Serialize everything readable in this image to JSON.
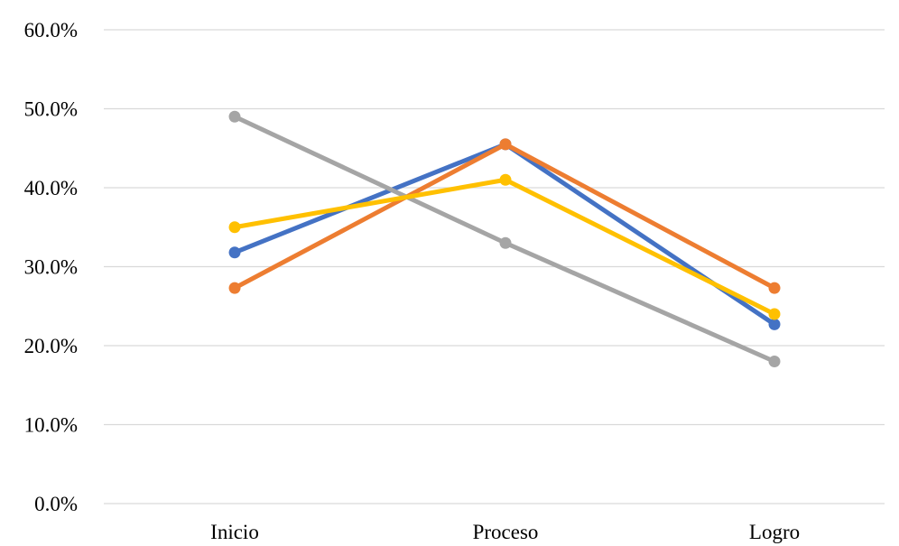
{
  "chart_data": {
    "type": "line",
    "title": "",
    "xlabel": "",
    "ylabel": "",
    "categories": [
      "Inicio",
      "Proceso",
      "Logro"
    ],
    "y_ticks": [
      "0.0%",
      "10.0%",
      "20.0%",
      "30.0%",
      "40.0%",
      "50.0%",
      "60.0%"
    ],
    "ylim": [
      0,
      60
    ],
    "grid": true,
    "legend": "none",
    "series": [
      {
        "color": "#4472c4",
        "values": [
          31.8,
          45.5,
          22.7
        ]
      },
      {
        "color": "#ed7d31",
        "values": [
          27.3,
          45.5,
          27.3
        ]
      },
      {
        "color": "#a5a5a5",
        "values": [
          49.0,
          33.0,
          18.0
        ]
      },
      {
        "color": "#ffc000",
        "values": [
          35.0,
          41.0,
          24.0
        ]
      }
    ]
  }
}
